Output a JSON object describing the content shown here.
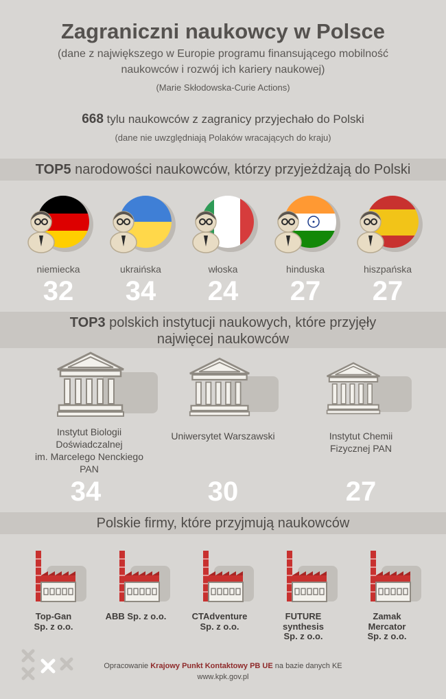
{
  "header": {
    "title": "Zagraniczni naukowcy w Polsce",
    "subtitle_line1": "(dane z największego w Europie programu finansującego mobilność",
    "subtitle_line2": "naukowców i rozwój ich kariery naukowej)",
    "program": "(Marie Skłodowska-Curie Actions)"
  },
  "summary": {
    "count": "668",
    "text": " tylu naukowców z zagranicy przyjechało do Polski",
    "note": "(dane nie uwzględniają Polaków wracających do kraju)"
  },
  "top5": {
    "title_bold": "TOP5",
    "title_rest": " narodowości naukowców, którzy przyjeżdżają do Polski",
    "items": [
      {
        "label": "niemiecka",
        "value": "32",
        "flag": "germany-flag-icon"
      },
      {
        "label": "ukraińska",
        "value": "34",
        "flag": "ukraine-flag-icon"
      },
      {
        "label": "włoska",
        "value": "24",
        "flag": "italy-flag-icon"
      },
      {
        "label": "hinduska",
        "value": "27",
        "flag": "india-flag-icon"
      },
      {
        "label": "hiszpańska",
        "value": "27",
        "flag": "spain-flag-icon"
      }
    ],
    "colors": {
      "germany": [
        "#000000",
        "#dd0000",
        "#ffce00"
      ],
      "ukraine": [
        "#0057b7",
        "#ffd700"
      ],
      "italy": [
        "#009246",
        "#ffffff",
        "#ce2b37"
      ],
      "india": [
        "#ff9933",
        "#ffffff",
        "#138808"
      ],
      "spain": [
        "#aa151b",
        "#f1bf00"
      ]
    }
  },
  "top3": {
    "title_bold": "TOP3",
    "title_rest": " polskich instytucji naukowych, które przyjęły",
    "title_line2": "najwięcej naukowców",
    "items": [
      {
        "line1": "Instytut Biologii",
        "line2": "Doświadczalnej",
        "line3": "im. Marcelego Nenckiego",
        "line4": "PAN",
        "value": "34"
      },
      {
        "line1": "Uniwersytet Warszawski",
        "value": "30"
      },
      {
        "line1": "Instytut Chemii",
        "line2": "Fizycznej PAN",
        "value": "27"
      }
    ]
  },
  "firms": {
    "title": "Polskie firmy, które przyjmują naukowców",
    "items": [
      {
        "line1": "Top-Gan",
        "line2": "Sp. z o.o."
      },
      {
        "line1": "ABB Sp. z o.o."
      },
      {
        "line1": "CTAdventure",
        "line2": "Sp. z o.o."
      },
      {
        "line1": "FUTURE",
        "line2": "synthesis",
        "line3": "Sp. z o.o."
      },
      {
        "line1": "Zamak",
        "line2": "Mercator",
        "line3": "Sp. z o.o."
      }
    ]
  },
  "footer": {
    "prefix": "Opracowanie ",
    "org": "Krajowy Punkt Kontaktowy PB UE",
    "suffix": " na bazie danych KE",
    "url": "www.kpk.gov.pl"
  }
}
